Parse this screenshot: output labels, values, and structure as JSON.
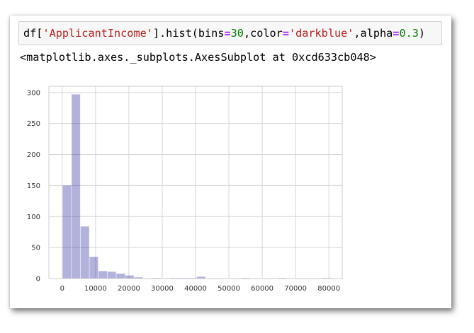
{
  "code": {
    "t1": "df[",
    "t2": "'ApplicantIncome'",
    "t3": "].hist(bins",
    "t4": "=",
    "t5": "30",
    "t6": ",color",
    "t7": "=",
    "t8": "'darkblue'",
    "t9": ",alpha",
    "t10": "=",
    "t11": "0.3",
    "t12": ")"
  },
  "output_repr": "<matplotlib.axes._subplots.AxesSubplot at 0xcd633cb048>",
  "chart_data": {
    "type": "bar",
    "bar_color": "#00008b",
    "alpha": 0.3,
    "grid": true,
    "xlim": [
      -4000,
      84000
    ],
    "ylim": [
      0,
      310
    ],
    "bin_edges": [
      150,
      2833,
      5516,
      8199,
      10882,
      13565,
      16248,
      18931,
      21614,
      24297,
      26980,
      29663,
      32346,
      35029,
      37712,
      40395,
      43078,
      45761,
      48444,
      51127,
      53810,
      56493,
      59176,
      61859,
      64542,
      67225,
      69908,
      72591,
      75274,
      77957,
      80640
    ],
    "values": [
      150,
      297,
      84,
      35,
      12,
      11,
      8,
      5,
      2,
      0,
      1,
      0,
      1,
      1,
      1,
      3,
      0,
      0,
      0,
      0,
      1,
      0,
      0,
      0,
      1,
      0,
      0,
      0,
      0,
      1
    ],
    "xticks": [
      0,
      10000,
      20000,
      30000,
      40000,
      50000,
      60000,
      70000,
      80000
    ],
    "yticks": [
      0,
      50,
      100,
      150,
      200,
      250,
      300
    ]
  }
}
